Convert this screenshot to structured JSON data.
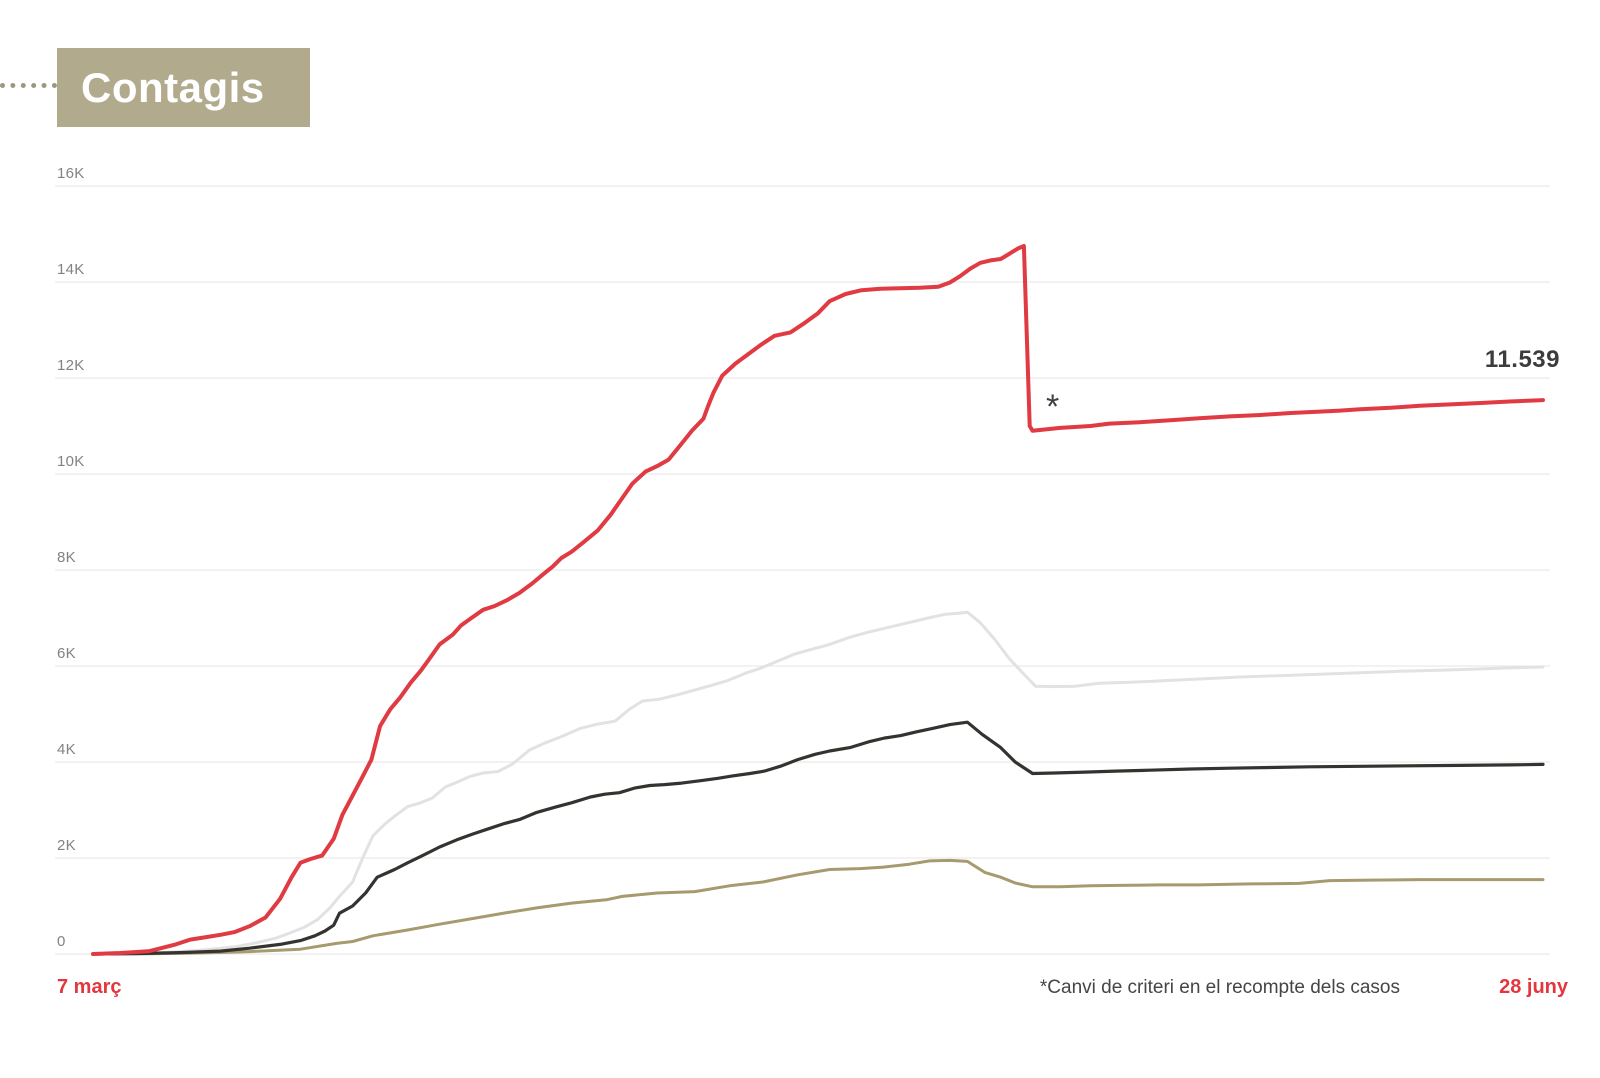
{
  "header": {
    "title": "Contagis"
  },
  "chart_data": {
    "type": "line",
    "title": "Contagis",
    "x_axis": {
      "start_label": "7 març",
      "end_label": "28 juny",
      "unit": "fraction of date range between 7 març and 28 juny"
    },
    "y_axis": {
      "range": [
        0,
        16000
      ],
      "grid": true,
      "ticks": [
        {
          "value": 0,
          "label": "0"
        },
        {
          "value": 2000,
          "label": "2K"
        },
        {
          "value": 4000,
          "label": "4K"
        },
        {
          "value": 6000,
          "label": "6K"
        },
        {
          "value": 8000,
          "label": "8K"
        },
        {
          "value": 10000,
          "label": "10K"
        },
        {
          "value": 12000,
          "label": "12K"
        },
        {
          "value": 14000,
          "label": "14K"
        },
        {
          "value": 16000,
          "label": "16K"
        }
      ]
    },
    "annotation": {
      "mark": "*",
      "footnote": "*Canvi de criteri en el recompte dels casos"
    },
    "end_value_label": "11.539",
    "series": [
      {
        "id": "series-gray",
        "color": "#e2e2e2",
        "stroke_width": 3,
        "points": [
          [
            0,
            0
          ],
          [
            0.026,
            10
          ],
          [
            0.046,
            30
          ],
          [
            0.074,
            80
          ],
          [
            0.098,
            150
          ],
          [
            0.112,
            230
          ],
          [
            0.126,
            330
          ],
          [
            0.136,
            440
          ],
          [
            0.146,
            560
          ],
          [
            0.155,
            720
          ],
          [
            0.163,
            950
          ],
          [
            0.17,
            1200
          ],
          [
            0.179,
            1500
          ],
          [
            0.186,
            2000
          ],
          [
            0.193,
            2460
          ],
          [
            0.201,
            2700
          ],
          [
            0.208,
            2870
          ],
          [
            0.217,
            3070
          ],
          [
            0.226,
            3150
          ],
          [
            0.234,
            3250
          ],
          [
            0.243,
            3480
          ],
          [
            0.251,
            3580
          ],
          [
            0.26,
            3700
          ],
          [
            0.269,
            3770
          ],
          [
            0.279,
            3800
          ],
          [
            0.289,
            3950
          ],
          [
            0.301,
            4250
          ],
          [
            0.312,
            4400
          ],
          [
            0.323,
            4530
          ],
          [
            0.336,
            4700
          ],
          [
            0.348,
            4790
          ],
          [
            0.36,
            4850
          ],
          [
            0.37,
            5100
          ],
          [
            0.379,
            5270
          ],
          [
            0.391,
            5310
          ],
          [
            0.403,
            5400
          ],
          [
            0.415,
            5500
          ],
          [
            0.427,
            5600
          ],
          [
            0.438,
            5700
          ],
          [
            0.45,
            5850
          ],
          [
            0.46,
            5950
          ],
          [
            0.472,
            6100
          ],
          [
            0.484,
            6250
          ],
          [
            0.496,
            6350
          ],
          [
            0.508,
            6450
          ],
          [
            0.522,
            6600
          ],
          [
            0.534,
            6700
          ],
          [
            0.548,
            6800
          ],
          [
            0.562,
            6900
          ],
          [
            0.576,
            7000
          ],
          [
            0.588,
            7080
          ],
          [
            0.597,
            7100
          ],
          [
            0.603,
            7120
          ],
          [
            0.612,
            6900
          ],
          [
            0.622,
            6550
          ],
          [
            0.632,
            6150
          ],
          [
            0.643,
            5800
          ],
          [
            0.65,
            5580
          ],
          [
            0.663,
            5570
          ],
          [
            0.677,
            5580
          ],
          [
            0.694,
            5640
          ],
          [
            0.715,
            5660
          ],
          [
            0.736,
            5690
          ],
          [
            0.763,
            5730
          ],
          [
            0.791,
            5770
          ],
          [
            0.819,
            5800
          ],
          [
            0.846,
            5830
          ],
          [
            0.874,
            5860
          ],
          [
            0.901,
            5890
          ],
          [
            0.929,
            5910
          ],
          [
            0.957,
            5940
          ],
          [
            0.977,
            5960
          ],
          [
            1,
            5980
          ]
        ]
      },
      {
        "id": "series-olive",
        "color": "#a79a6e",
        "stroke_width": 3,
        "points": [
          [
            0,
            0
          ],
          [
            0.039,
            5
          ],
          [
            0.074,
            20
          ],
          [
            0.108,
            50
          ],
          [
            0.143,
            100
          ],
          [
            0.168,
            220
          ],
          [
            0.179,
            260
          ],
          [
            0.193,
            380
          ],
          [
            0.217,
            500
          ],
          [
            0.239,
            620
          ],
          [
            0.262,
            740
          ],
          [
            0.284,
            855
          ],
          [
            0.306,
            960
          ],
          [
            0.33,
            1060
          ],
          [
            0.354,
            1130
          ],
          [
            0.365,
            1200
          ],
          [
            0.389,
            1270
          ],
          [
            0.415,
            1300
          ],
          [
            0.439,
            1420
          ],
          [
            0.462,
            1500
          ],
          [
            0.486,
            1650
          ],
          [
            0.508,
            1760
          ],
          [
            0.529,
            1780
          ],
          [
            0.545,
            1810
          ],
          [
            0.563,
            1870
          ],
          [
            0.577,
            1940
          ],
          [
            0.591,
            1950
          ],
          [
            0.603,
            1930
          ],
          [
            0.615,
            1700
          ],
          [
            0.626,
            1600
          ],
          [
            0.636,
            1480
          ],
          [
            0.648,
            1400
          ],
          [
            0.667,
            1400
          ],
          [
            0.688,
            1420
          ],
          [
            0.708,
            1430
          ],
          [
            0.736,
            1440
          ],
          [
            0.763,
            1440
          ],
          [
            0.798,
            1460
          ],
          [
            0.832,
            1470
          ],
          [
            0.853,
            1530
          ],
          [
            0.881,
            1540
          ],
          [
            0.915,
            1550
          ],
          [
            0.95,
            1550
          ],
          [
            0.977,
            1550
          ],
          [
            1,
            1550
          ]
        ]
      },
      {
        "id": "series-black",
        "color": "#35332f",
        "stroke_width": 3.2,
        "points": [
          [
            0,
            0
          ],
          [
            0.032,
            10
          ],
          [
            0.06,
            30
          ],
          [
            0.088,
            60
          ],
          [
            0.108,
            120
          ],
          [
            0.129,
            200
          ],
          [
            0.143,
            280
          ],
          [
            0.153,
            380
          ],
          [
            0.16,
            480
          ],
          [
            0.166,
            600
          ],
          [
            0.17,
            850
          ],
          [
            0.179,
            1000
          ],
          [
            0.188,
            1270
          ],
          [
            0.196,
            1600
          ],
          [
            0.202,
            1680
          ],
          [
            0.208,
            1760
          ],
          [
            0.217,
            1900
          ],
          [
            0.228,
            2060
          ],
          [
            0.239,
            2230
          ],
          [
            0.251,
            2380
          ],
          [
            0.262,
            2500
          ],
          [
            0.274,
            2620
          ],
          [
            0.284,
            2720
          ],
          [
            0.294,
            2800
          ],
          [
            0.306,
            2950
          ],
          [
            0.319,
            3060
          ],
          [
            0.33,
            3150
          ],
          [
            0.343,
            3270
          ],
          [
            0.353,
            3330
          ],
          [
            0.363,
            3360
          ],
          [
            0.374,
            3460
          ],
          [
            0.384,
            3510
          ],
          [
            0.394,
            3530
          ],
          [
            0.406,
            3560
          ],
          [
            0.419,
            3610
          ],
          [
            0.431,
            3660
          ],
          [
            0.441,
            3710
          ],
          [
            0.453,
            3760
          ],
          [
            0.463,
            3810
          ],
          [
            0.475,
            3920
          ],
          [
            0.486,
            4050
          ],
          [
            0.498,
            4160
          ],
          [
            0.508,
            4230
          ],
          [
            0.522,
            4300
          ],
          [
            0.536,
            4430
          ],
          [
            0.546,
            4500
          ],
          [
            0.557,
            4550
          ],
          [
            0.568,
            4630
          ],
          [
            0.579,
            4700
          ],
          [
            0.591,
            4780
          ],
          [
            0.603,
            4830
          ],
          [
            0.613,
            4580
          ],
          [
            0.626,
            4300
          ],
          [
            0.636,
            4000
          ],
          [
            0.648,
            3760
          ],
          [
            0.663,
            3770
          ],
          [
            0.684,
            3790
          ],
          [
            0.705,
            3810
          ],
          [
            0.729,
            3830
          ],
          [
            0.757,
            3855
          ],
          [
            0.784,
            3870
          ],
          [
            0.812,
            3885
          ],
          [
            0.839,
            3900
          ],
          [
            0.874,
            3910
          ],
          [
            0.908,
            3920
          ],
          [
            0.943,
            3930
          ],
          [
            0.977,
            3940
          ],
          [
            1,
            3950
          ]
        ]
      },
      {
        "id": "series-red",
        "color": "#e03a42",
        "stroke_width": 4,
        "end_value": 11539,
        "points": [
          [
            0,
            0
          ],
          [
            0.019,
            20
          ],
          [
            0.039,
            60
          ],
          [
            0.057,
            200
          ],
          [
            0.067,
            300
          ],
          [
            0.077,
            345
          ],
          [
            0.088,
            400
          ],
          [
            0.098,
            460
          ],
          [
            0.108,
            580
          ],
          [
            0.119,
            760
          ],
          [
            0.129,
            1150
          ],
          [
            0.137,
            1600
          ],
          [
            0.143,
            1900
          ],
          [
            0.15,
            1980
          ],
          [
            0.158,
            2050
          ],
          [
            0.166,
            2400
          ],
          [
            0.172,
            2900
          ],
          [
            0.179,
            3300
          ],
          [
            0.186,
            3700
          ],
          [
            0.192,
            4050
          ],
          [
            0.198,
            4750
          ],
          [
            0.205,
            5100
          ],
          [
            0.212,
            5350
          ],
          [
            0.219,
            5650
          ],
          [
            0.226,
            5900
          ],
          [
            0.232,
            6150
          ],
          [
            0.239,
            6450
          ],
          [
            0.248,
            6650
          ],
          [
            0.254,
            6850
          ],
          [
            0.261,
            7000
          ],
          [
            0.269,
            7170
          ],
          [
            0.277,
            7250
          ],
          [
            0.286,
            7380
          ],
          [
            0.294,
            7520
          ],
          [
            0.303,
            7720
          ],
          [
            0.31,
            7900
          ],
          [
            0.317,
            8070
          ],
          [
            0.323,
            8250
          ],
          [
            0.33,
            8380
          ],
          [
            0.338,
            8570
          ],
          [
            0.348,
            8820
          ],
          [
            0.357,
            9150
          ],
          [
            0.365,
            9500
          ],
          [
            0.372,
            9800
          ],
          [
            0.381,
            10050
          ],
          [
            0.39,
            10180
          ],
          [
            0.397,
            10300
          ],
          [
            0.405,
            10600
          ],
          [
            0.413,
            10900
          ],
          [
            0.421,
            11150
          ],
          [
            0.424,
            11400
          ],
          [
            0.428,
            11700
          ],
          [
            0.434,
            12050
          ],
          [
            0.443,
            12300
          ],
          [
            0.452,
            12500
          ],
          [
            0.461,
            12700
          ],
          [
            0.47,
            12880
          ],
          [
            0.481,
            12950
          ],
          [
            0.491,
            13150
          ],
          [
            0.5,
            13350
          ],
          [
            0.508,
            13600
          ],
          [
            0.519,
            13750
          ],
          [
            0.53,
            13830
          ],
          [
            0.543,
            13860
          ],
          [
            0.557,
            13870
          ],
          [
            0.57,
            13880
          ],
          [
            0.583,
            13900
          ],
          [
            0.591,
            13990
          ],
          [
            0.598,
            14120
          ],
          [
            0.605,
            14280
          ],
          [
            0.612,
            14400
          ],
          [
            0.619,
            14450
          ],
          [
            0.626,
            14480
          ],
          [
            0.631,
            14570
          ],
          [
            0.638,
            14700
          ],
          [
            0.642,
            14750
          ],
          [
            0.646,
            11000
          ],
          [
            0.648,
            10900
          ],
          [
            0.667,
            10960
          ],
          [
            0.688,
            11000
          ],
          [
            0.701,
            11050
          ],
          [
            0.722,
            11080
          ],
          [
            0.743,
            11120
          ],
          [
            0.763,
            11160
          ],
          [
            0.784,
            11200
          ],
          [
            0.805,
            11230
          ],
          [
            0.826,
            11270
          ],
          [
            0.846,
            11300
          ],
          [
            0.86,
            11320
          ],
          [
            0.874,
            11350
          ],
          [
            0.895,
            11380
          ],
          [
            0.915,
            11420
          ],
          [
            0.936,
            11450
          ],
          [
            0.957,
            11480
          ],
          [
            0.977,
            11510
          ],
          [
            1,
            11539
          ]
        ]
      }
    ]
  },
  "colors": {
    "title_bg": "#b2aa8c",
    "title_text": "#ffffff",
    "accent_red": "#e4363f",
    "gridline": "#e6e6e6",
    "tick_text": "#828282",
    "footnote_text": "#454545",
    "end_value_text": "#3c3c3c"
  }
}
